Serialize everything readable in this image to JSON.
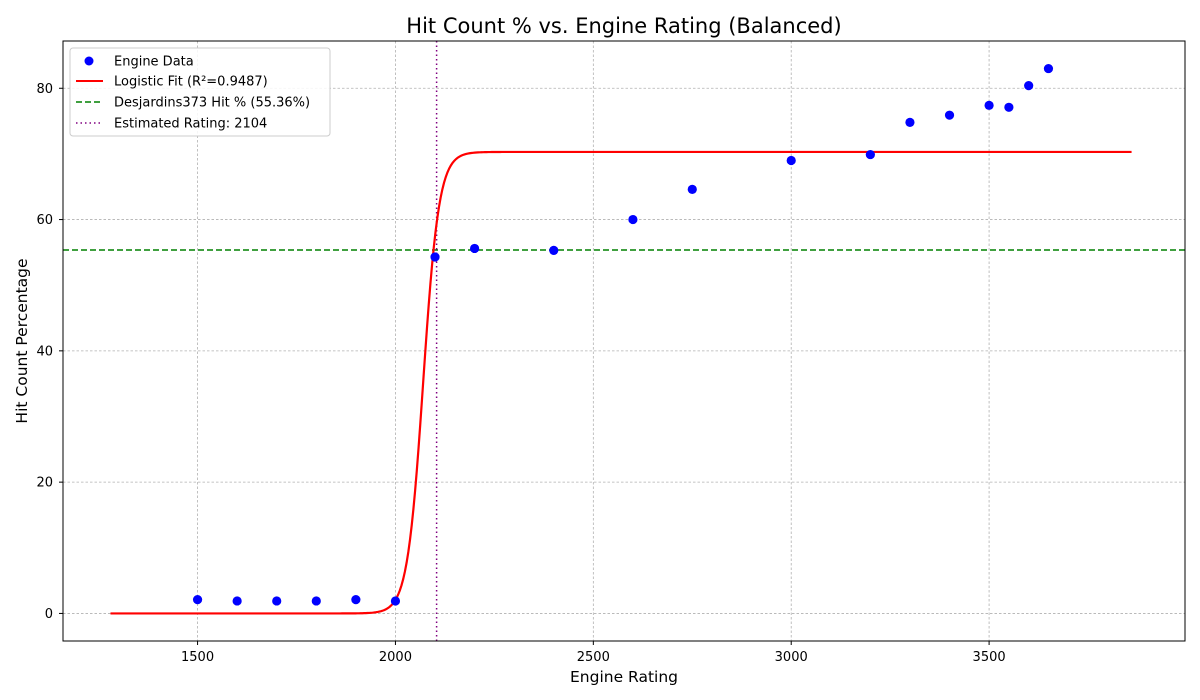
{
  "chart_data": {
    "type": "scatter",
    "title": "Hit Count % vs. Engine Rating (Balanced)",
    "xlabel": "Engine Rating",
    "ylabel": "Hit Count Percentage",
    "xlim": [
      1160,
      3995
    ],
    "ylim": [
      -4.2,
      87.2
    ],
    "x_ticks": [
      1500,
      2000,
      2500,
      3000,
      3500
    ],
    "y_ticks": [
      0,
      20,
      40,
      60,
      80
    ],
    "grid": true,
    "legend_position": "top-left",
    "colors": {
      "points": "#0000ff",
      "fit": "#ff0000",
      "reference": "#008000",
      "estimate": "#800080"
    },
    "series": [
      {
        "name": "Engine Data",
        "kind": "scatter",
        "x": [
          1500,
          1600,
          1700,
          1800,
          1900,
          2000,
          2100,
          2200,
          2400,
          2600,
          2750,
          3000,
          3200,
          3300,
          3400,
          3500,
          3550,
          3600,
          3650
        ],
        "y": [
          2.1,
          1.9,
          1.9,
          1.9,
          2.1,
          1.9,
          54.3,
          55.6,
          55.3,
          60.0,
          64.6,
          69.0,
          69.9,
          74.8,
          75.9,
          77.4,
          77.1,
          80.4,
          83.0
        ]
      },
      {
        "name": "Logistic Fit (R²=0.9487)",
        "kind": "line",
        "function": "logistic",
        "L": 70.3,
        "k": 0.05,
        "x0": 2070,
        "x_start": 1280,
        "x_end": 3860
      },
      {
        "name": "Desjardins373 Hit % (55.36%)",
        "kind": "hline",
        "y": 55.36
      },
      {
        "name": "Estimated Rating: 2104",
        "kind": "vline",
        "x": 2104
      }
    ]
  }
}
